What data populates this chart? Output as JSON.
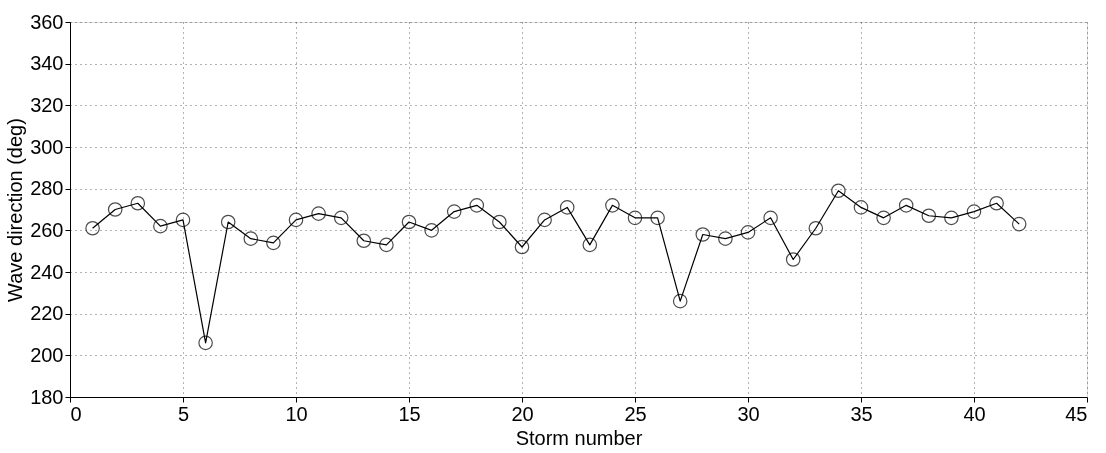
{
  "chart_data": {
    "type": "line",
    "xlabel": "Storm number",
    "ylabel": "Wave direction (deg)",
    "x": [
      1,
      2,
      3,
      4,
      5,
      6,
      7,
      8,
      9,
      10,
      11,
      12,
      13,
      14,
      15,
      16,
      17,
      18,
      19,
      20,
      21,
      22,
      23,
      24,
      25,
      26,
      27,
      28,
      29,
      30,
      31,
      32,
      33,
      34,
      35,
      36,
      37,
      38,
      39,
      40,
      41,
      42
    ],
    "series": [
      {
        "color": "#000000",
        "values": [
          261,
          270,
          273,
          262,
          265,
          206,
          264,
          256,
          254,
          265,
          268,
          266,
          255,
          253,
          264,
          260,
          269,
          272,
          264,
          252,
          265,
          271,
          253,
          272,
          266,
          266,
          226,
          258,
          256,
          259,
          266,
          246,
          261,
          279,
          271,
          266,
          272,
          267,
          266,
          269,
          273,
          263
        ]
      }
    ],
    "xlim": [
      0,
      45
    ],
    "xticks": [
      0,
      5,
      10,
      15,
      20,
      25,
      30,
      35,
      40,
      45
    ],
    "ylim": [
      180,
      360
    ],
    "yticks": [
      180,
      200,
      220,
      240,
      260,
      280,
      300,
      320,
      340,
      360
    ],
    "grid": true,
    "marker": "circle",
    "line_style": "solid"
  }
}
